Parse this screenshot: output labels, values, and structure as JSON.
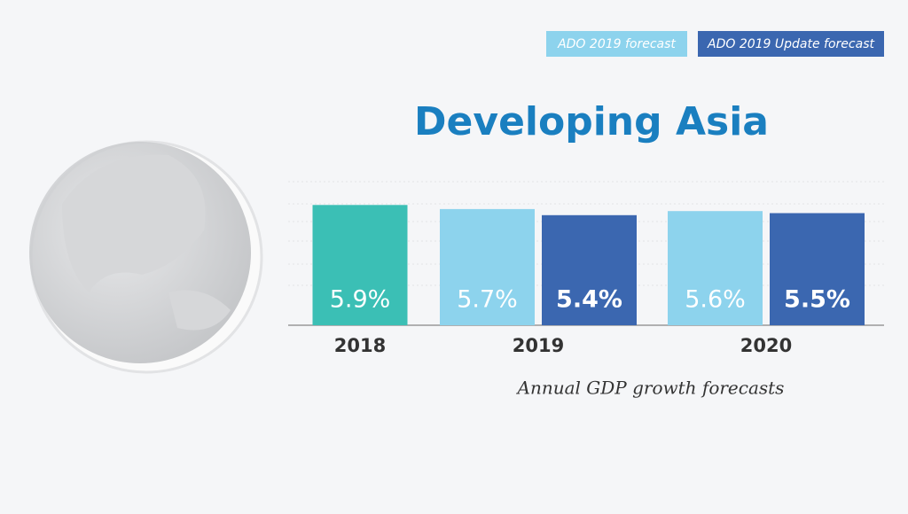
{
  "chart_data": {
    "type": "bar",
    "title": "Developing Asia",
    "x_label": "Annual GDP growth forecasts",
    "categories": [
      "2018",
      "2019",
      "2020"
    ],
    "series": [
      {
        "color": "#3bbfb5",
        "values": [
          5.9,
          null,
          null
        ],
        "value_labels": [
          "5.9%",
          null,
          null
        ]
      },
      {
        "name": "ADO 2019 forecast",
        "color": "#8dd3ed",
        "values": [
          null,
          5.7,
          5.6
        ],
        "value_labels": [
          null,
          "5.7%",
          "5.6%"
        ]
      },
      {
        "name": "ADO 2019 Update forecast",
        "color": "#3b67b0",
        "values": [
          null,
          5.4,
          5.5
        ],
        "value_labels": [
          null,
          "5.4%",
          "5.5%"
        ]
      }
    ]
  }
}
